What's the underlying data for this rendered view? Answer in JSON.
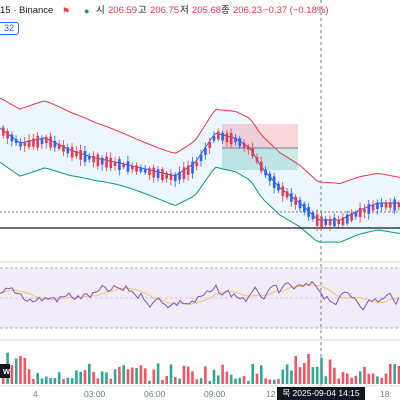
{
  "header": {
    "symbol_suffix": "15 · Binance",
    "open_label": "시",
    "open_value": "206.59",
    "high_label": "고",
    "high_value": "206.75",
    "low_label": "저",
    "low_value": "205.68",
    "close_label": "종",
    "close_value": "206.23",
    "change": "−0.37 (−0.18%)"
  },
  "price_tag": "32",
  "cursor_date": "목  2025-09-04  14:15",
  "time_axis": [
    "4",
    "03:00",
    "06:00",
    "09:00",
    "12",
    "18:"
  ],
  "volume_tag": "w",
  "colors": {
    "up": "#089981",
    "down": "#f23645",
    "candle_up": "#2962ff",
    "bb_upper": "#f23645",
    "bb_lower": "#089981",
    "bb_basis": "#2962ff",
    "bb_fill": "#e3f2fd",
    "rsi_line": "#7e57c2",
    "rsi_ma": "#f6c26b",
    "rsi_band": "#ede7f6"
  },
  "icons": [
    "flag-icon",
    "status-dot-icon"
  ]
}
